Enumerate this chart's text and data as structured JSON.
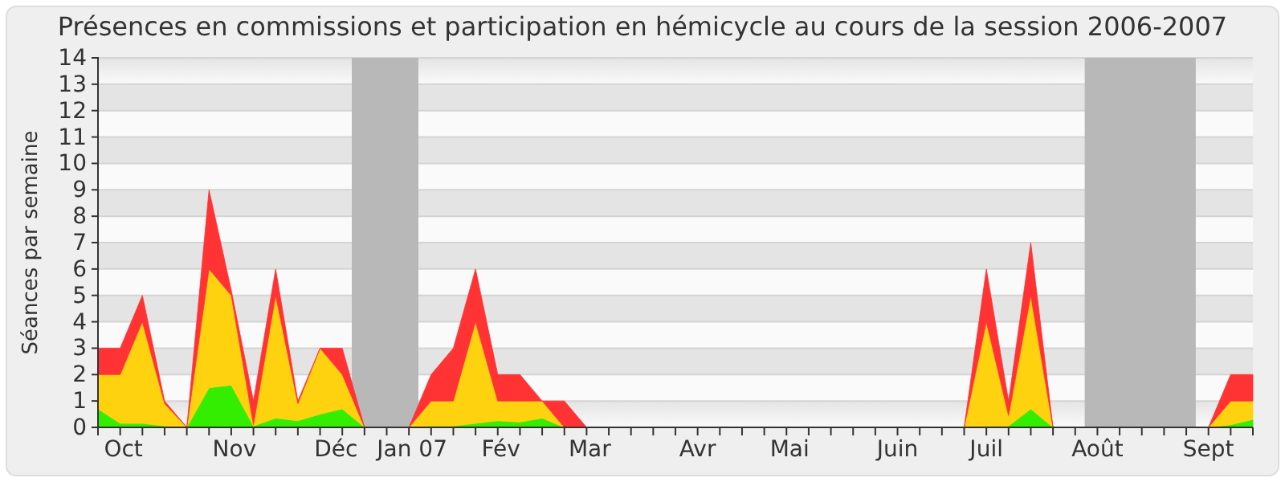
{
  "chart_data": {
    "type": "area",
    "stacked": true,
    "title": "Présences en commissions et participation en hémicycle au cours de la session 2006-2007",
    "ylabel": "Séances par semaine",
    "x": [
      "2006-09-27",
      "2006-10-04",
      "2006-10-11",
      "2006-10-18",
      "2006-10-25",
      "2006-11-01",
      "2006-11-08",
      "2006-11-15",
      "2006-11-22",
      "2006-11-29",
      "2006-12-06",
      "2006-12-13",
      "2006-12-20",
      "2006-12-27",
      "2007-01-03",
      "2007-01-10",
      "2007-01-17",
      "2007-01-24",
      "2007-01-31",
      "2007-02-07",
      "2007-02-14",
      "2007-02-21",
      "2007-02-28",
      "2007-03-07",
      "2007-03-14",
      "2007-03-21",
      "2007-03-28",
      "2007-04-04",
      "2007-04-11",
      "2007-04-18",
      "2007-04-25",
      "2007-05-02",
      "2007-05-09",
      "2007-05-16",
      "2007-05-23",
      "2007-05-30",
      "2007-06-06",
      "2007-06-13",
      "2007-06-20",
      "2007-06-27",
      "2007-07-04",
      "2007-07-11",
      "2007-07-18",
      "2007-07-25",
      "2007-08-01",
      "2007-08-08",
      "2007-08-15",
      "2007-08-22",
      "2007-08-29",
      "2007-09-05",
      "2007-09-12",
      "2007-09-19",
      "2007-09-26"
    ],
    "series": [
      {
        "color": "#33ee00",
        "values": [
          0.7,
          0.15,
          0.15,
          0.05,
          0,
          1.5,
          1.6,
          0.05,
          0.35,
          0.25,
          0.5,
          0.7,
          0,
          0,
          0,
          0.05,
          0.05,
          0.15,
          0.25,
          0.2,
          0.35,
          0,
          0,
          0,
          0,
          0,
          0,
          0,
          0,
          0,
          0,
          0,
          0,
          0,
          0,
          0,
          0,
          0,
          0,
          0,
          0.05,
          0.05,
          0.7,
          0,
          0,
          0,
          0,
          0,
          0,
          0,
          0,
          0.1,
          0.3
        ]
      },
      {
        "color": "#ffd20f",
        "values": [
          1.3,
          1.85,
          3.85,
          0.85,
          0,
          4.5,
          3.4,
          0.05,
          4.65,
          0.65,
          2.5,
          1.3,
          0,
          0,
          0,
          0.95,
          0.95,
          3.85,
          0.75,
          0.8,
          0.65,
          0,
          0,
          0,
          0,
          0,
          0,
          0,
          0,
          0,
          0,
          0,
          0,
          0,
          0,
          0,
          0,
          0,
          0,
          0,
          3.95,
          0.4,
          4.3,
          0,
          0,
          0,
          0,
          0,
          0,
          0,
          0,
          0.9,
          0.7
        ]
      },
      {
        "color": "#ff3333",
        "values": [
          1,
          1,
          1,
          0.1,
          0,
          3,
          0.2,
          0.9,
          1,
          0.1,
          0,
          1,
          0,
          0,
          0,
          1,
          2,
          2,
          1,
          1,
          0,
          1,
          0,
          0,
          0,
          0,
          0,
          0,
          0,
          0,
          0,
          0,
          0,
          0,
          0,
          0,
          0,
          0,
          0,
          0,
          2,
          0.55,
          2,
          0,
          0,
          0,
          0,
          0,
          0,
          0,
          0,
          1,
          1
        ]
      }
    ],
    "xlim": [
      "2006-09-27",
      "2007-09-26"
    ],
    "xticks": [
      {
        "value": "2006-09-27",
        "label": null
      },
      {
        "value": "2006-10-04",
        "label": null
      },
      {
        "value": "2006-10-11",
        "label": null
      },
      {
        "value": "2006-10-18",
        "label": null
      },
      {
        "value": "2006-10-25",
        "label": null
      },
      {
        "value": "2006-11-01",
        "label": null
      },
      {
        "value": "2006-11-08",
        "label": null
      },
      {
        "value": "2006-11-15",
        "label": null
      },
      {
        "value": "2006-11-22",
        "label": null
      },
      {
        "value": "2006-11-29",
        "label": null
      },
      {
        "value": "2006-12-06",
        "label": null
      },
      {
        "value": "2006-12-13",
        "label": null
      },
      {
        "value": "2006-12-20",
        "label": null
      },
      {
        "value": "2006-12-27",
        "label": null
      },
      {
        "value": "2007-01-03",
        "label": null
      },
      {
        "value": "2007-01-10",
        "label": null
      },
      {
        "value": "2007-01-17",
        "label": null
      },
      {
        "value": "2007-01-24",
        "label": null
      },
      {
        "value": "2007-01-31",
        "label": null
      },
      {
        "value": "2007-02-07",
        "label": null
      },
      {
        "value": "2007-02-14",
        "label": null
      },
      {
        "value": "2007-02-21",
        "label": null
      },
      {
        "value": "2007-02-28",
        "label": null
      },
      {
        "value": "2007-03-07",
        "label": null
      },
      {
        "value": "2007-03-14",
        "label": null
      },
      {
        "value": "2007-03-21",
        "label": null
      },
      {
        "value": "2007-03-28",
        "label": null
      },
      {
        "value": "2007-04-04",
        "label": null
      },
      {
        "value": "2007-04-11",
        "label": null
      },
      {
        "value": "2007-04-18",
        "label": null
      },
      {
        "value": "2007-04-25",
        "label": null
      },
      {
        "value": "2007-05-02",
        "label": null
      },
      {
        "value": "2007-05-09",
        "label": null
      },
      {
        "value": "2007-05-16",
        "label": null
      },
      {
        "value": "2007-05-23",
        "label": null
      },
      {
        "value": "2007-05-30",
        "label": null
      },
      {
        "value": "2007-06-06",
        "label": null
      },
      {
        "value": "2007-06-13",
        "label": null
      },
      {
        "value": "2007-06-20",
        "label": null
      },
      {
        "value": "2007-06-27",
        "label": null
      },
      {
        "value": "2007-07-04",
        "label": null
      },
      {
        "value": "2007-07-11",
        "label": null
      },
      {
        "value": "2007-07-18",
        "label": null
      },
      {
        "value": "2007-07-25",
        "label": null
      },
      {
        "value": "2007-08-01",
        "label": null
      },
      {
        "value": "2007-08-08",
        "label": null
      },
      {
        "value": "2007-08-15",
        "label": null
      },
      {
        "value": "2007-08-22",
        "label": null
      },
      {
        "value": "2007-08-29",
        "label": null
      },
      {
        "value": "2007-09-05",
        "label": null
      },
      {
        "value": "2007-09-12",
        "label": null
      },
      {
        "value": "2007-09-19",
        "label": null
      },
      {
        "value": "2007-09-26",
        "label": null
      },
      {
        "value": "2006-10-05",
        "label": "Oct"
      },
      {
        "value": "2006-11-09",
        "label": "Nov"
      },
      {
        "value": "2006-12-11",
        "label": "Déc"
      },
      {
        "value": "2007-01-04",
        "label": "Jan 07"
      },
      {
        "value": "2007-02-01",
        "label": "Fév"
      },
      {
        "value": "2007-03-01",
        "label": "Mar"
      },
      {
        "value": "2007-04-04",
        "label": "Avr"
      },
      {
        "value": "2007-05-03",
        "label": "Mai"
      },
      {
        "value": "2007-06-06",
        "label": "Juin"
      },
      {
        "value": "2007-07-04",
        "label": "Juil"
      },
      {
        "value": "2007-08-08",
        "label": "Août"
      },
      {
        "value": "2007-09-12",
        "label": "Sept"
      }
    ],
    "ylim": [
      0,
      14
    ],
    "yticks": [
      0,
      1,
      2,
      3,
      4,
      5,
      6,
      7,
      8,
      9,
      10,
      11,
      12,
      13,
      14
    ],
    "grid": "y",
    "bands": [
      {
        "axis": "x",
        "from": "2006-12-16",
        "to": "2007-01-06",
        "color": "#b8b8b8"
      },
      {
        "axis": "x",
        "from": "2007-08-04",
        "to": "2007-09-08",
        "color": "#b8b8b8"
      }
    ]
  }
}
